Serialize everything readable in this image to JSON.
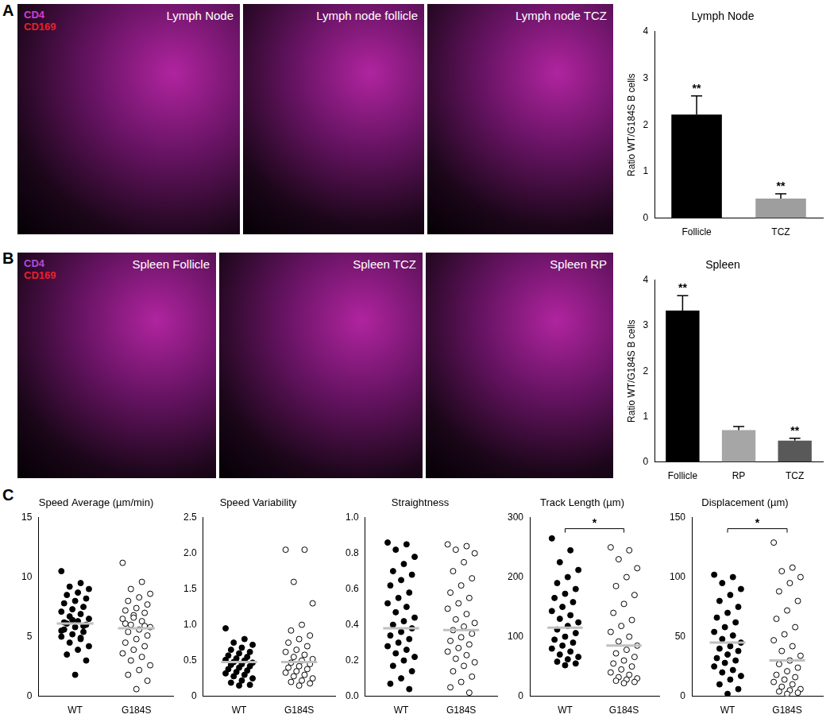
{
  "panel_labels": [
    "A",
    "B",
    "C"
  ],
  "images": [
    {
      "title": "Lymph Node",
      "stains": [
        {
          "name": "CD4",
          "color": "#d63ad6"
        },
        {
          "name": "CD169",
          "color": "#e8202a"
        }
      ]
    },
    {
      "title": "Lymph node follicle"
    },
    {
      "title": "Lymph node TCZ"
    },
    {
      "title": "Spleen Follicle",
      "stains": [
        {
          "name": "CD4",
          "color": "#b04cd8"
        },
        {
          "name": "CD169",
          "color": "#e8202a"
        }
      ]
    },
    {
      "title": "Spleen TCZ"
    },
    {
      "title": "Spleen RP"
    }
  ],
  "chart_data": [
    {
      "type": "bar",
      "title": "Lymph Node",
      "y_label": "Ratio WT/G184S B cells",
      "categories": [
        "Follicle",
        "TCZ"
      ],
      "values": [
        2.22,
        0.42
      ],
      "errors": [
        0.4,
        0.1
      ],
      "significance": [
        "**",
        "**"
      ],
      "colors": [
        "#000000",
        "#9e9e9e"
      ],
      "ylim": [
        0,
        4
      ],
      "yticks": [
        0,
        1,
        2,
        3,
        4
      ],
      "grid": false
    },
    {
      "type": "bar",
      "title": "Spleen",
      "y_label": "Ratio WT/G184S B cells",
      "categories": [
        "Follicle",
        "RP",
        "TCZ"
      ],
      "values": [
        3.33,
        0.7,
        0.47
      ],
      "errors": [
        0.33,
        0.08,
        0.05
      ],
      "significance": [
        "**",
        null,
        "**"
      ],
      "colors": [
        "#000000",
        "#a6a6a6",
        "#595959"
      ],
      "ylim": [
        0,
        4
      ],
      "yticks": [
        0,
        1,
        2,
        3,
        4
      ],
      "grid": false
    },
    {
      "type": "scatter",
      "title": "Speed Average (µm/min)",
      "ylim": [
        0,
        15
      ],
      "yticks": [
        0,
        5,
        10,
        15
      ],
      "grid": false,
      "series": [
        {
          "name": "WT",
          "color": "#000000",
          "marker": "filled_circle",
          "mean": 6.1,
          "values": [
            10.5,
            9.5,
            9.2,
            9.0,
            8.7,
            8.5,
            8.2,
            8.0,
            7.8,
            7.5,
            7.3,
            7.1,
            6.9,
            6.7,
            6.5,
            6.3,
            6.1,
            6.0,
            5.8,
            5.6,
            5.4,
            5.2,
            5.0,
            4.8,
            4.5,
            4.2,
            3.9,
            3.5,
            3.0,
            1.8,
            6.2,
            5.9,
            6.4,
            5.5,
            4.9
          ]
        },
        {
          "name": "G184S",
          "color": "#000000",
          "marker": "open_circle",
          "mean": 5.7,
          "values": [
            11.2,
            9.6,
            9.0,
            8.6,
            8.3,
            8.0,
            7.7,
            7.4,
            7.2,
            7.0,
            6.8,
            6.5,
            6.3,
            6.0,
            5.8,
            5.6,
            5.4,
            5.1,
            4.8,
            4.5,
            4.2,
            3.9,
            3.6,
            3.3,
            3.0,
            2.6,
            2.2,
            1.8,
            1.3,
            0.6,
            6.1,
            5.9,
            6.6
          ]
        }
      ]
    },
    {
      "type": "scatter",
      "title": "Speed Variability",
      "ylim": [
        0,
        2.5
      ],
      "yticks": [
        0,
        0.5,
        {
          "value": 1,
          "label": "1.0"
        },
        1.5,
        {
          "value": 2,
          "label": "2.0"
        },
        2.5
      ],
      "grid": false,
      "series": [
        {
          "name": "WT",
          "color": "#000000",
          "marker": "filled_circle",
          "mean": 0.48,
          "values": [
            0.95,
            0.8,
            0.75,
            0.72,
            0.68,
            0.65,
            0.62,
            0.6,
            0.57,
            0.55,
            0.53,
            0.51,
            0.5,
            0.48,
            0.47,
            0.45,
            0.44,
            0.42,
            0.4,
            0.38,
            0.36,
            0.34,
            0.32,
            0.3,
            0.28,
            0.25,
            0.22,
            0.19,
            0.16,
            0.15
          ]
        },
        {
          "name": "G184S",
          "color": "#000000",
          "marker": "open_circle",
          "mean": 0.48,
          "values": [
            2.05,
            2.05,
            1.6,
            1.3,
            1.0,
            0.92,
            0.85,
            0.8,
            0.75,
            0.7,
            0.65,
            0.62,
            0.58,
            0.55,
            0.52,
            0.5,
            0.47,
            0.45,
            0.42,
            0.4,
            0.38,
            0.35,
            0.33,
            0.3,
            0.28,
            0.25,
            0.22,
            0.2,
            0.18,
            0.15
          ]
        }
      ]
    },
    {
      "type": "scatter",
      "title": "Straightness",
      "ylim": [
        0,
        1
      ],
      "yticks": [
        {
          "value": 0,
          "label": "0.0"
        },
        0.2,
        0.4,
        0.6,
        0.8,
        {
          "value": 1,
          "label": "1.0"
        }
      ],
      "grid": false,
      "series": [
        {
          "name": "WT",
          "color": "#000000",
          "marker": "filled_circle",
          "mean": 0.38,
          "values": [
            0.86,
            0.85,
            0.82,
            0.78,
            0.74,
            0.7,
            0.68,
            0.65,
            0.62,
            0.58,
            0.55,
            0.52,
            0.5,
            0.47,
            0.44,
            0.42,
            0.4,
            0.38,
            0.36,
            0.34,
            0.32,
            0.3,
            0.28,
            0.26,
            0.24,
            0.22,
            0.2,
            0.17,
            0.14,
            0.1,
            0.07,
            0.04
          ]
        },
        {
          "name": "G184S",
          "color": "#000000",
          "marker": "open_circle",
          "mean": 0.37,
          "values": [
            0.85,
            0.84,
            0.82,
            0.8,
            0.75,
            0.7,
            0.66,
            0.62,
            0.58,
            0.55,
            0.52,
            0.49,
            0.46,
            0.43,
            0.41,
            0.39,
            0.37,
            0.35,
            0.33,
            0.31,
            0.29,
            0.27,
            0.25,
            0.23,
            0.21,
            0.19,
            0.17,
            0.14,
            0.11,
            0.08,
            0.05,
            0.02
          ]
        }
      ]
    },
    {
      "type": "scatter",
      "title": "Track Length (µm)",
      "ylim": [
        0,
        300
      ],
      "yticks": [
        0,
        100,
        200,
        300
      ],
      "grid": false,
      "significance": "*",
      "series": [
        {
          "name": "WT",
          "color": "#000000",
          "marker": "filled_circle",
          "mean": 115,
          "values": [
            265,
            245,
            225,
            212,
            200,
            190,
            180,
            172,
            165,
            158,
            150,
            143,
            136,
            130,
            124,
            118,
            112,
            106,
            100,
            95,
            90,
            85,
            80,
            75,
            70,
            66,
            62,
            58,
            55,
            52
          ]
        },
        {
          "name": "G184S",
          "color": "#000000",
          "marker": "open_circle",
          "mean": 85,
          "values": [
            250,
            245,
            230,
            215,
            200,
            185,
            170,
            155,
            140,
            128,
            118,
            108,
            100,
            92,
            85,
            78,
            72,
            66,
            60,
            55,
            50,
            45,
            40,
            36,
            32,
            30,
            28,
            26,
            24,
            22
          ]
        }
      ]
    },
    {
      "type": "scatter",
      "title": "Displacement (µm)",
      "ylim": [
        0,
        150
      ],
      "yticks": [
        0,
        50,
        100,
        150
      ],
      "grid": false,
      "significance": "*",
      "series": [
        {
          "name": "WT",
          "color": "#000000",
          "marker": "filled_circle",
          "mean": 45,
          "values": [
            102,
            100,
            95,
            90,
            85,
            80,
            75,
            70,
            66,
            62,
            58,
            54,
            51,
            48,
            45,
            42,
            40,
            38,
            35,
            32,
            30,
            28,
            25,
            22,
            20,
            17,
            14,
            10,
            6,
            2
          ]
        },
        {
          "name": "G184S",
          "color": "#000000",
          "marker": "open_circle",
          "mean": 30,
          "values": [
            129,
            108,
            105,
            100,
            95,
            88,
            80,
            72,
            65,
            58,
            52,
            47,
            42,
            38,
            34,
            30,
            27,
            24,
            21,
            18,
            16,
            14,
            12,
            10,
            8,
            6,
            5,
            4,
            3,
            2
          ]
        }
      ]
    }
  ]
}
